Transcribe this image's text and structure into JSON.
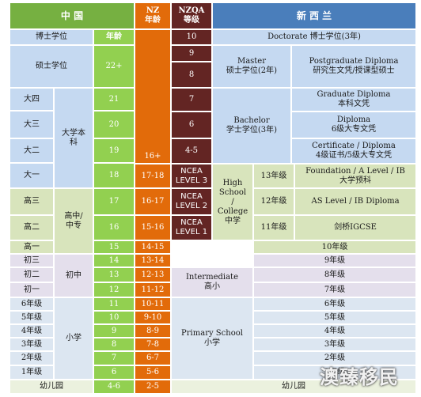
{
  "header": {
    "china": "中 国",
    "nz_age": "NZ\n年龄",
    "nzqa": "NZQA\n等级",
    "new_zealand": "新 西 兰"
  },
  "china": {
    "phd": "博士学位",
    "age_label": "年龄",
    "masters": "硕士学位",
    "masters_age": "22+",
    "da4": "大四",
    "da3": "大三",
    "da2": "大二",
    "da1": "大一",
    "undergrad": "大学本\n科",
    "gao3": "高三",
    "gao2": "高二",
    "gao1": "高一",
    "high_school": "高中/\n中专",
    "chu3": "初三",
    "chu2": "初二",
    "chu1": "初一",
    "middle": "初中",
    "g6": "6年级",
    "g5": "5年级",
    "g4": "4年级",
    "g3": "3年级",
    "g2": "2年级",
    "g1": "1年级",
    "primary": "小学",
    "kindergarten": "幼儿园",
    "ages": [
      "21",
      "20",
      "19",
      "18",
      "17",
      "16",
      "15",
      "14",
      "13",
      "12",
      "11",
      "10",
      "9",
      "8",
      "7",
      "6",
      "4-6"
    ]
  },
  "nz_age": {
    "uni": "16+",
    "rows": [
      "17-18",
      "16-17",
      "15-16",
      "14-15",
      "13-14",
      "12-13",
      "11-12",
      "10-11",
      "9-10",
      "8-9",
      "7-8",
      "6-7",
      "5-6",
      "2-5"
    ]
  },
  "nzqa": {
    "levels": [
      "10",
      "9",
      "8",
      "7",
      "6",
      "4-5"
    ],
    "ncea3": "NCEA\nLEVEL 3",
    "ncea2": "NCEA\nLEVEL 2",
    "ncea1": "NCEA\nLEVEL 1"
  },
  "nz": {
    "doctorate": "Doctorate 博士学位(3年)",
    "master": "Master\n硕士学位(2年)",
    "pg_diploma": "Postgraduate Diploma\n研究生文凭/授课型硕士",
    "bachelor": "Bachelor\n学士学位(3年)",
    "grad_diploma": "Graduate Diploma\n本科文凭",
    "diploma": "Diploma\n6级大专文凭",
    "certificate": "Certificate / Diploma\n4级证书/5级大专文凭",
    "high_school": "High\nSchool\n/\nCollege\n中学",
    "y13": "13年级",
    "y12": "12年级",
    "y11": "11年级",
    "foundation": "Foundation / A Level / IB\n大学预科",
    "as_level": "AS Level / IB Diploma",
    "igcse": "剑桥IGCSE",
    "y10": "10年级",
    "y9": "9年级",
    "y8": "8年级",
    "y7": "7年级",
    "intermediate": "Intermediate\n高小",
    "y6": "6年级",
    "y5": "5年级",
    "y4": "4年级",
    "y3": "3年级",
    "y2": "2年级",
    "y1": "1年级",
    "primary": "Primary School\n小学",
    "kindergarten": "幼儿园"
  },
  "watermark": "澳臻移民"
}
